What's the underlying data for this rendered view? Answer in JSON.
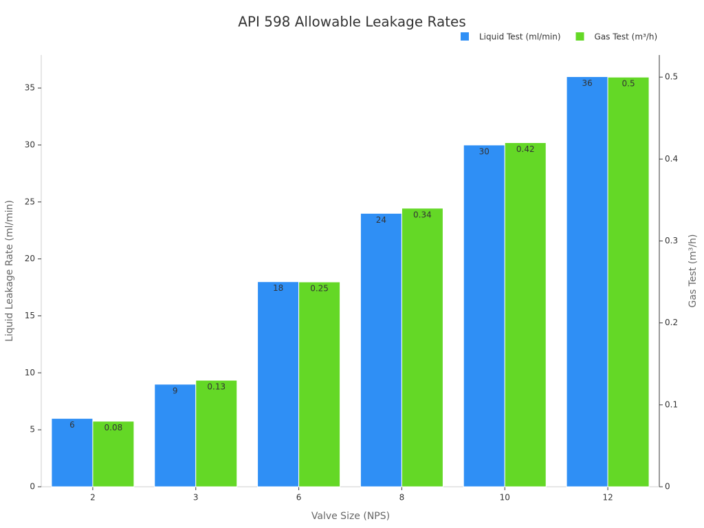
{
  "chart_data": {
    "type": "bar",
    "title": "API 598 Allowable Leakage Rates",
    "x_label": "Valve Size (NPS)",
    "y_label": "Liquid Leakage Rate (ml/min)",
    "y2_label": "Gas Test (m³/h)",
    "categories": [
      "2",
      "3",
      "6",
      "8",
      "10",
      "12"
    ],
    "series": [
      {
        "name": "Liquid Test (ml/min)",
        "color": "#2f8ff5",
        "values": [
          6,
          9,
          18,
          24,
          30,
          36
        ]
      },
      {
        "name": "Gas Test (m³/h)",
        "color": "#64d826",
        "axis": "y2",
        "values": [
          0.08,
          0.13,
          0.25,
          0.34,
          0.42,
          0.5
        ]
      }
    ],
    "ylim": [
      0,
      37.9
    ],
    "yticks": [
      0,
      5,
      10,
      15,
      20,
      25,
      30,
      35
    ],
    "y2lim": [
      0,
      0.527
    ],
    "y2ticks": [
      0,
      0.1,
      0.2,
      0.3,
      0.4,
      0.5
    ],
    "legend": "upper right",
    "data_labels": true
  }
}
